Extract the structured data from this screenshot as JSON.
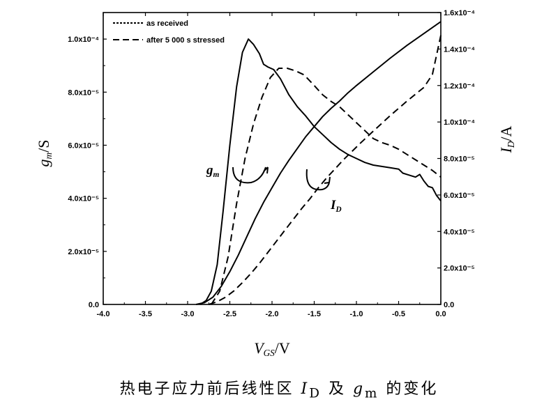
{
  "chart_data": {
    "type": "line",
    "xlabel": "V_GS/V",
    "ylabel_left": "g_m/S",
    "ylabel_right": "I_D/A",
    "xlim": [
      -4.0,
      0.0
    ],
    "ylim_left": [
      0,
      0.00011
    ],
    "ylim_right": [
      0,
      0.00016
    ],
    "x_ticks": [
      "-4.0",
      "-3.5",
      "-3.0",
      "-2.5",
      "-2.0",
      "-1.5",
      "-1.0",
      "-0.5",
      "0.0"
    ],
    "y_ticks_left": [
      "0.0",
      "2.0x10⁻⁵",
      "4.0x10⁻⁵",
      "6.0x10⁻⁵",
      "8.0x10⁻⁵",
      "1.0x10⁻⁴"
    ],
    "y_ticks_right": [
      "0.0",
      "2.0x10⁻⁵",
      "4.0x10⁻⁵",
      "6.0x10⁻⁵",
      "8.0x10⁻⁵",
      "1.0x10⁻⁴",
      "1.2x10⁻⁴",
      "1.4x10⁻⁴",
      "1.6x10⁻⁴"
    ],
    "legend": {
      "placement": "top-left",
      "entries": [
        {
          "label": "as received",
          "style": "solid"
        },
        {
          "label": "after 5 000 s stressed",
          "style": "dashed"
        }
      ]
    },
    "annotations": {
      "gm_label": "g_m",
      "id_label": "I_D"
    },
    "series": [
      {
        "name": "as received",
        "quantity": "gm",
        "axis": "left",
        "style": "solid",
        "x": [
          -2.85,
          -2.78,
          -2.72,
          -2.65,
          -2.58,
          -2.5,
          -2.42,
          -2.35,
          -2.28,
          -2.22,
          -2.15,
          -2.1,
          -2.05,
          -1.98,
          -1.9,
          -1.8,
          -1.7,
          -1.6,
          -1.5,
          -1.4,
          -1.3,
          -1.2,
          -1.1,
          -1.0,
          -0.9,
          -0.8,
          -0.7,
          -0.6,
          -0.5,
          -0.45,
          -0.4,
          -0.35,
          -0.3,
          -0.25,
          -0.2,
          -0.15,
          -0.1,
          -0.05,
          0.0
        ],
        "y": [
          0.0,
          1.5e-06,
          5e-06,
          1.5e-05,
          3.5e-05,
          6e-05,
          8.2e-05,
          9.5e-05,
          0.0001,
          9.8e-05,
          9.45e-05,
          9.05e-05,
          8.95e-05,
          8.85e-05,
          8.5e-05,
          7.9e-05,
          7.45e-05,
          7.1e-05,
          6.7e-05,
          6.4e-05,
          6.1e-05,
          5.85e-05,
          5.65e-05,
          5.5e-05,
          5.35e-05,
          5.25e-05,
          5.2e-05,
          5.15e-05,
          5.1e-05,
          4.95e-05,
          4.9e-05,
          4.85e-05,
          4.8e-05,
          4.9e-05,
          4.65e-05,
          4.45e-05,
          4.4e-05,
          4.1e-05,
          3.9e-05
        ]
      },
      {
        "name": "after 5 000 s stressed",
        "quantity": "gm",
        "axis": "left",
        "style": "dashed",
        "x": [
          -2.72,
          -2.62,
          -2.52,
          -2.42,
          -2.32,
          -2.22,
          -2.12,
          -2.02,
          -1.92,
          -1.82,
          -1.72,
          -1.62,
          -1.5,
          -1.4,
          -1.3,
          -1.2,
          -1.1,
          -1.0,
          -0.9,
          -0.8,
          -0.7,
          -0.6,
          -0.5,
          -0.4,
          -0.3,
          -0.2,
          -0.1,
          0.0
        ],
        "y": [
          0.0,
          5e-06,
          1.8e-05,
          3.8e-05,
          5.5e-05,
          6.8e-05,
          7.8e-05,
          8.55e-05,
          8.9e-05,
          8.9e-05,
          8.8e-05,
          8.65e-05,
          8.25e-05,
          7.9e-05,
          7.65e-05,
          7.45e-05,
          7.15e-05,
          6.85e-05,
          6.55e-05,
          6.25e-05,
          6.1e-05,
          6e-05,
          5.85e-05,
          5.65e-05,
          5.45e-05,
          5.25e-05,
          5.05e-05,
          4.8e-05
        ]
      },
      {
        "name": "as received",
        "quantity": "ID",
        "axis": "right",
        "style": "solid",
        "x": [
          -2.9,
          -2.8,
          -2.7,
          -2.6,
          -2.5,
          -2.4,
          -2.3,
          -2.2,
          -2.1,
          -2.0,
          -1.9,
          -1.8,
          -1.7,
          -1.6,
          -1.5,
          -1.4,
          -1.3,
          -1.2,
          -1.1,
          -1.0,
          -0.8,
          -0.6,
          -0.4,
          -0.2,
          0.0
        ],
        "y": [
          0.0,
          1e-06,
          4e-06,
          1e-05,
          1.8e-05,
          2.7e-05,
          3.7e-05,
          4.7e-05,
          5.6e-05,
          6.4e-05,
          7.2e-05,
          7.9e-05,
          8.55e-05,
          9.2e-05,
          9.75e-05,
          0.000103,
          0.0001075,
          0.0001115,
          0.000116,
          0.00012,
          0.0001275,
          0.000135,
          0.000142,
          0.0001485,
          0.000155
        ]
      },
      {
        "name": "after 5 000 s stressed",
        "quantity": "ID",
        "axis": "right",
        "style": "dashed",
        "x": [
          -2.75,
          -2.65,
          -2.55,
          -2.45,
          -2.35,
          -2.25,
          -2.15,
          -2.05,
          -1.95,
          -1.85,
          -1.75,
          -1.65,
          -1.55,
          -1.45,
          -1.35,
          -1.25,
          -1.15,
          -1.05,
          -0.95,
          -0.8,
          -0.6,
          -0.4,
          -0.2,
          -0.1,
          0.0
        ],
        "y": [
          0.0,
          1.5e-06,
          4e-06,
          7.5e-06,
          1.2e-05,
          1.7e-05,
          2.25e-05,
          2.85e-05,
          3.45e-05,
          4.05e-05,
          4.65e-05,
          5.25e-05,
          5.8e-05,
          6.4e-05,
          6.95e-05,
          7.45e-05,
          7.95e-05,
          8.4e-05,
          8.85e-05,
          9.5e-05,
          0.0001035,
          0.0001115,
          0.000119,
          0.000126,
          0.0001475
        ]
      }
    ]
  },
  "caption": "热电子应力前后线性区 I_D 及 g_m 的变化"
}
